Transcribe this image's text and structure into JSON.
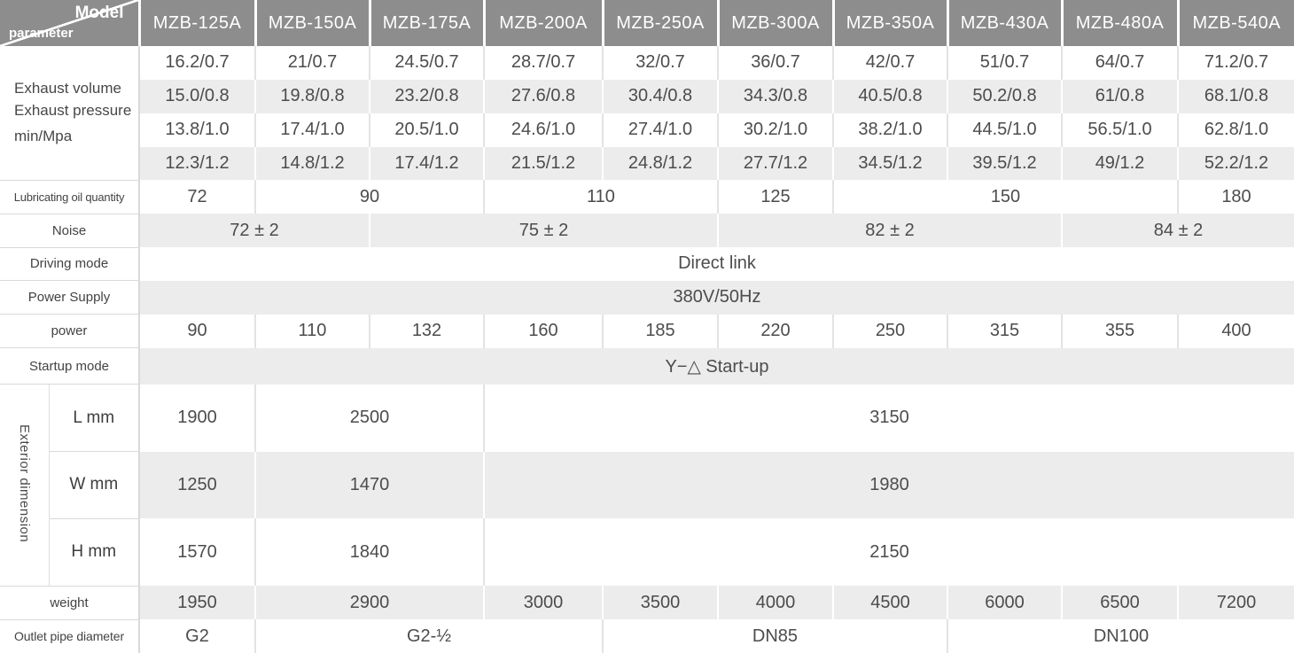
{
  "colors": {
    "header_bg": "#8d8d8d",
    "header_text": "#ffffff",
    "row_alt_bg": "#ececec",
    "value_text": "#4c4c4c",
    "border_light": "#e3e3e3",
    "border_label": "#d9d9d9"
  },
  "chart_data": {
    "type": "table",
    "corner": {
      "top_label": "Model",
      "bottom_label": "parameter"
    },
    "columns": [
      "MZB-125A",
      "MZB-150A",
      "MZB-175A",
      "MZB-200A",
      "MZB-250A",
      "MZB-300A",
      "MZB-350A",
      "MZB-430A",
      "MZB-480A",
      "MZB-540A"
    ],
    "exhaust": {
      "label_lines": [
        "Exhaust volume",
        "Exhaust pressure",
        "min/Mpa"
      ],
      "rows": [
        [
          "16.2/0.7",
          "21/0.7",
          "24.5/0.7",
          "28.7/0.7",
          "32/0.7",
          "36/0.7",
          "42/0.7",
          "51/0.7",
          "64/0.7",
          "71.2/0.7"
        ],
        [
          "15.0/0.8",
          "19.8/0.8",
          "23.2/0.8",
          "27.6/0.8",
          "30.4/0.8",
          "34.3/0.8",
          "40.5/0.8",
          "50.2/0.8",
          "61/0.8",
          "68.1/0.8"
        ],
        [
          "13.8/1.0",
          "17.4/1.0",
          "20.5/1.0",
          "24.6/1.0",
          "27.4/1.0",
          "30.2/1.0",
          "38.2/1.0",
          "44.5/1.0",
          "56.5/1.0",
          "62.8/1.0"
        ],
        [
          "12.3/1.2",
          "14.8/1.2",
          "17.4/1.2",
          "21.5/1.2",
          "24.8/1.2",
          "27.7/1.2",
          "34.5/1.2",
          "39.5/1.2",
          "49/1.2",
          "52.2/1.2"
        ]
      ]
    },
    "lubricating_oil": {
      "label": "Lubricating oil quantity",
      "cells": [
        {
          "t": "72",
          "s": 1
        },
        {
          "t": "90",
          "s": 2
        },
        {
          "t": "110",
          "s": 2
        },
        {
          "t": "125",
          "s": 1
        },
        {
          "t": "150",
          "s": 3
        },
        {
          "t": "180",
          "s": 1
        }
      ]
    },
    "noise": {
      "label": "Noise",
      "cells": [
        {
          "t": "72 ± 2",
          "s": 2
        },
        {
          "t": "75 ± 2",
          "s": 3
        },
        {
          "t": "82 ± 2",
          "s": 3
        },
        {
          "t": "84 ± 2",
          "s": 2
        }
      ]
    },
    "driving_mode": {
      "label": "Driving mode",
      "value": "Direct link"
    },
    "power_supply": {
      "label": "Power Supply",
      "value": "380V/50Hz"
    },
    "power": {
      "label": "power",
      "values": [
        "90",
        "110",
        "132",
        "160",
        "185",
        "220",
        "250",
        "315",
        "355",
        "400"
      ]
    },
    "startup_mode": {
      "label": "Startup mode",
      "value": "Y−△  Start-up"
    },
    "exterior_dimension": {
      "group_label": "Exterior dimension",
      "rows": [
        {
          "label": "L mm",
          "cells": [
            {
              "t": "1900",
              "s": 1
            },
            {
              "t": "2500",
              "s": 2
            },
            {
              "t": "3150",
              "s": 7
            }
          ]
        },
        {
          "label": "W mm",
          "cells": [
            {
              "t": "1250",
              "s": 1
            },
            {
              "t": "1470",
              "s": 2
            },
            {
              "t": "1980",
              "s": 7
            }
          ]
        },
        {
          "label": "H mm",
          "cells": [
            {
              "t": "1570",
              "s": 1
            },
            {
              "t": "1840",
              "s": 2
            },
            {
              "t": "2150",
              "s": 7
            }
          ]
        }
      ]
    },
    "weight": {
      "label": "weight",
      "cells": [
        {
          "t": "1950",
          "s": 1
        },
        {
          "t": "2900",
          "s": 2
        },
        {
          "t": "3000",
          "s": 1
        },
        {
          "t": "3500",
          "s": 1
        },
        {
          "t": "4000",
          "s": 1
        },
        {
          "t": "4500",
          "s": 1
        },
        {
          "t": "6000",
          "s": 1
        },
        {
          "t": "6500",
          "s": 1
        },
        {
          "t": "7200",
          "s": 1
        }
      ]
    },
    "outlet_pipe": {
      "label": "Outlet pipe diameter",
      "cells": [
        {
          "t": "G2",
          "s": 1
        },
        {
          "t": "G2-½",
          "s": 3
        },
        {
          "t": "DN85",
          "s": 3
        },
        {
          "t": "DN100",
          "s": 3
        }
      ]
    }
  }
}
